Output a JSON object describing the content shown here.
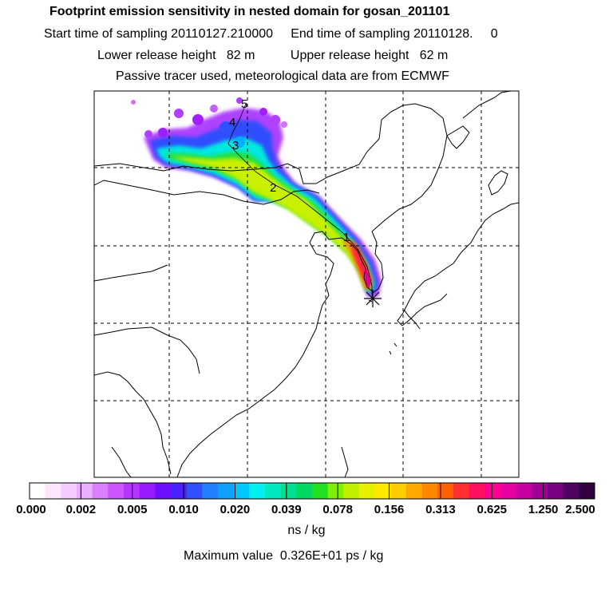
{
  "header": {
    "title": "Footprint emission sensitivity in nested domain for gosan_201101",
    "sampling": "Start time of sampling 20110127.210000     End time of sampling 20110128.     0",
    "release": "Lower release height   82 m          Upper release height   62 m",
    "tracer": "Passive tracer used, meteorological data are from ECMWF"
  },
  "map": {
    "trajectory_labels": [
      "1",
      "2",
      "3",
      "4",
      "5"
    ],
    "receptor": "star-marker",
    "colors": {
      "coast": "#000000",
      "grid": "#000000"
    }
  },
  "colorbar": {
    "tick_labels": [
      "0.000",
      "0.002",
      "0.005",
      "0.010",
      "0.020",
      "0.039",
      "0.078",
      "0.156",
      "0.313",
      "0.625",
      "1.250",
      "2.500"
    ],
    "colors": [
      "#ffffff",
      "#fbe6ff",
      "#f4ccff",
      "#eab0ff",
      "#d980ff",
      "#cc55ff",
      "#b733ff",
      "#9a1aff",
      "#6e10ff",
      "#4a20ff",
      "#3050ff",
      "#2080ff",
      "#10a0ff",
      "#00c8ff",
      "#00f0f0",
      "#00e8c0",
      "#00e090",
      "#00d860",
      "#20e020",
      "#80f000",
      "#c0f000",
      "#e8f000",
      "#ffe800",
      "#ffcc00",
      "#ffa800",
      "#ff8800",
      "#ff6000",
      "#ff3030",
      "#ff1060",
      "#ff0090",
      "#e800a0",
      "#c800a0",
      "#a00098",
      "#780080",
      "#500060",
      "#300040"
    ],
    "units": "ns / kg",
    "max_value": "Maximum value  0.326E+01 ps / kg"
  }
}
